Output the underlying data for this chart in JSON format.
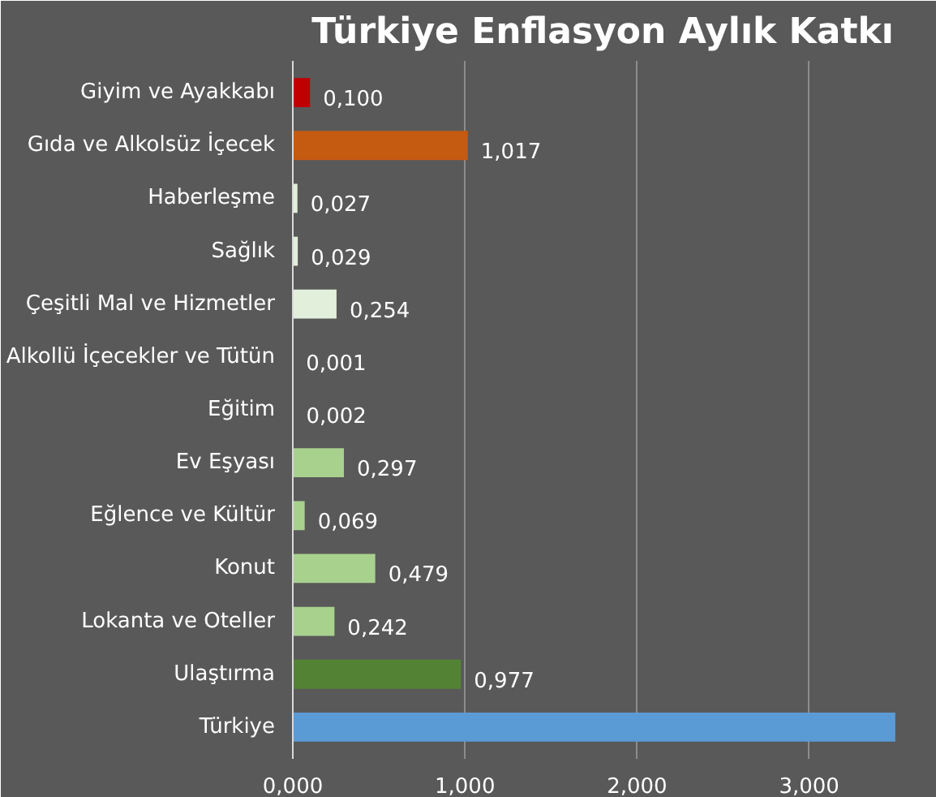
{
  "chart_data": {
    "type": "bar",
    "orientation": "horizontal",
    "title": "Türkiye Enflasyon Aylık Katkı",
    "categories": [
      "Giyim ve Ayakkabı",
      "Gıda ve Alkolsüz İçecek",
      "Haberleşme",
      "Sağlık",
      "Çeşitli Mal ve Hizmetler",
      "Alkollü İçecekler ve Tütün",
      "Eğitim",
      "Ev Eşyası",
      "Eğlence ve Kültür",
      "Konut",
      "Lokanta ve Oteller",
      "Ulaştırma",
      "Türkiye"
    ],
    "values": [
      0.1,
      1.017,
      0.027,
      0.029,
      0.254,
      0.001,
      0.002,
      0.297,
      0.069,
      0.479,
      0.242,
      0.977,
      3.5
    ],
    "value_labels": [
      "0,100",
      "1,017",
      "0,027",
      "0,029",
      "0,254",
      "0,001",
      "0,002",
      "0,297",
      "0,069",
      "0,479",
      "0,242",
      "0,977",
      null
    ],
    "colors": [
      "#c00000",
      "#c55a11",
      "#e2efda",
      "#e2efda",
      "#e2efda",
      "#e2efda",
      "#e2efda",
      "#a9d18e",
      "#a9d18e",
      "#a9d18e",
      "#a9d18e",
      "#548235",
      "#5b9bd5"
    ],
    "xlim": [
      0,
      3.6
    ],
    "xticks": [
      {
        "value": 0,
        "label": "0,000"
      },
      {
        "value": 1,
        "label": "1,000"
      },
      {
        "value": 2,
        "label": "2,000"
      },
      {
        "value": 3,
        "label": "3,000"
      }
    ],
    "grid": "x"
  }
}
